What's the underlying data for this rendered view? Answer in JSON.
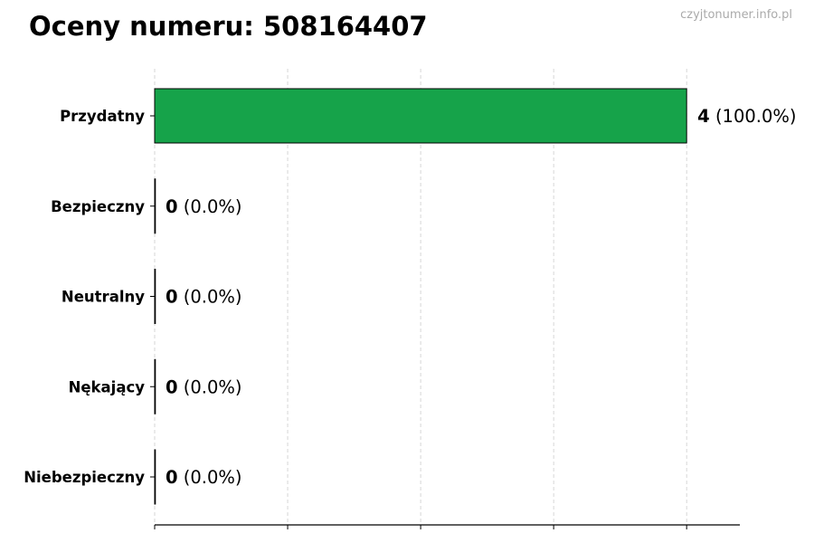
{
  "chart_data": {
    "type": "bar",
    "orientation": "horizontal",
    "title": "Oceny numeru: 508164407",
    "watermark": "czyjtonumer.info.pl",
    "categories": [
      "Przydatny",
      "Bezpieczny",
      "Neutralny",
      "Nękający",
      "Niebezpieczny"
    ],
    "values": [
      4,
      0,
      0,
      0,
      0
    ],
    "percent_labels": [
      "(100.0%)",
      "(0.0%)",
      "(0.0%)",
      "(0.0%)",
      "(0.0%)"
    ],
    "xlim": [
      0,
      4.4
    ],
    "x_ticks": [
      0,
      1,
      2,
      3,
      4
    ],
    "x_tick_labels_shown": false,
    "grid": "x-dashed",
    "bar_color": "#16a34a",
    "edge_color": "#000000",
    "xlabel": "",
    "ylabel": ""
  }
}
